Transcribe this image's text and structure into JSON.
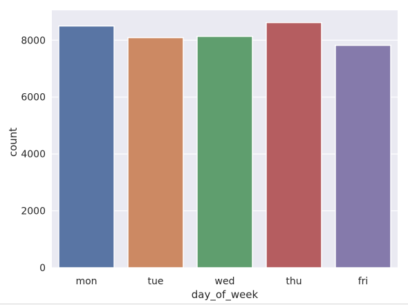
{
  "chart_data": {
    "type": "bar",
    "categories": [
      "mon",
      "tue",
      "wed",
      "thu",
      "fri"
    ],
    "values": [
      8500,
      8090,
      8135,
      8620,
      7820
    ],
    "colors": [
      "#5975a4",
      "#cc8963",
      "#5f9e6e",
      "#b55d60",
      "#857aab"
    ],
    "title": "",
    "xlabel": "day_of_week",
    "ylabel": "count",
    "ylim": [
      0,
      9050
    ],
    "yticks": [
      0,
      2000,
      4000,
      6000,
      8000
    ],
    "ytick_labels": [
      "0",
      "2000",
      "4000",
      "6000",
      "8000"
    ],
    "grid": true,
    "background": "#eaeaf2",
    "gridline_color": "#ffffff"
  }
}
